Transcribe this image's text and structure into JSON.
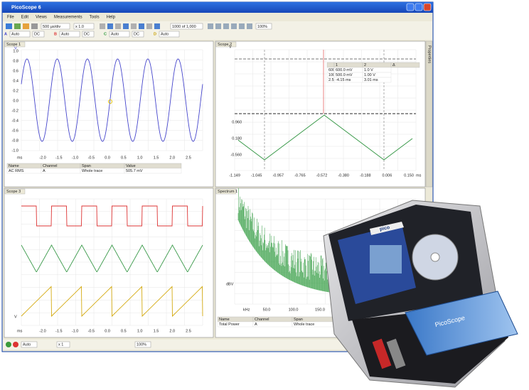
{
  "window": {
    "title": "PicoScope 6",
    "menu": [
      "File",
      "Edit",
      "Views",
      "Measurements",
      "Tools",
      "Help"
    ]
  },
  "toolbar": {
    "timebase": "500 µs/div",
    "zoom": "x 1.0",
    "captures": "1000 of 1,000",
    "percent": "100%"
  },
  "channels": [
    {
      "id": "A",
      "range": "Auto",
      "coupling": "DC"
    },
    {
      "id": "B",
      "range": "Auto",
      "coupling": "DC"
    },
    {
      "id": "C",
      "range": "Auto",
      "coupling": "DC"
    },
    {
      "id": "D",
      "range": "Auto"
    }
  ],
  "scope1": {
    "tab": "Scope 1",
    "y_unit": "V",
    "x_unit": "ms",
    "yticks": [
      "1.0",
      "0.8",
      "0.6",
      "0.4",
      "0.2",
      "0.0",
      "-0.2",
      "-0.4",
      "-0.6",
      "-0.8",
      "-1.0"
    ],
    "xticks": [
      "-2.0",
      "-1.5",
      "-1.0",
      "-0.5",
      "0.0",
      "0.5",
      "1.0",
      "1.5",
      "2.0",
      "2.5"
    ],
    "table": {
      "headers": [
        "Name",
        "Channel",
        "Span",
        "Value"
      ],
      "rows": [
        [
          "AC RMS",
          "A",
          "Whole trace",
          "505.7 mV"
        ]
      ]
    }
  },
  "scope2": {
    "tab": "Scope 2",
    "y_unit": "V",
    "x_unit": "ms",
    "yticks": [
      "0.960",
      "0.180",
      "-0.560"
    ],
    "xticks": [
      "-1.149",
      "-1.045",
      "-0.957",
      "-0.765",
      "-0.572",
      "-0.380",
      "-0.188",
      "0.006",
      "0.150"
    ],
    "rulers": {
      "headers": [
        "",
        "1",
        "2",
        "Δ"
      ],
      "rows": [
        [
          "600.0 ms",
          "600.0 mV",
          "1.0 V"
        ],
        [
          "100.0 ms",
          "500.0 mV",
          "1.00 V"
        ],
        [
          "2.5 µs",
          "-4.15 ms",
          "3.01 ms"
        ]
      ]
    }
  },
  "scope3": {
    "tab": "Scope 3",
    "y_unit": "V",
    "x_unit": "ms",
    "xticks": [
      "-2.0",
      "-1.5",
      "-1.0",
      "-0.5",
      "0.0",
      "0.5",
      "1.0",
      "1.5",
      "2.0",
      "2.5"
    ]
  },
  "spectrum": {
    "tab": "Spectrum 1",
    "y_unit": "dBV",
    "x_unit": "kHz",
    "xticks": [
      "50.0",
      "100.0",
      "150.0"
    ],
    "table": {
      "headers": [
        "Name",
        "Channel",
        "Span"
      ],
      "rows": [
        [
          "Total Power",
          "A",
          "Whole trace"
        ]
      ]
    }
  },
  "side_tab": "Properties",
  "statusbar": {
    "mode": "Auto",
    "zoom": "x 1",
    "percent": "100%"
  },
  "product": {
    "brand": "pico",
    "device": "PicoScope"
  }
}
